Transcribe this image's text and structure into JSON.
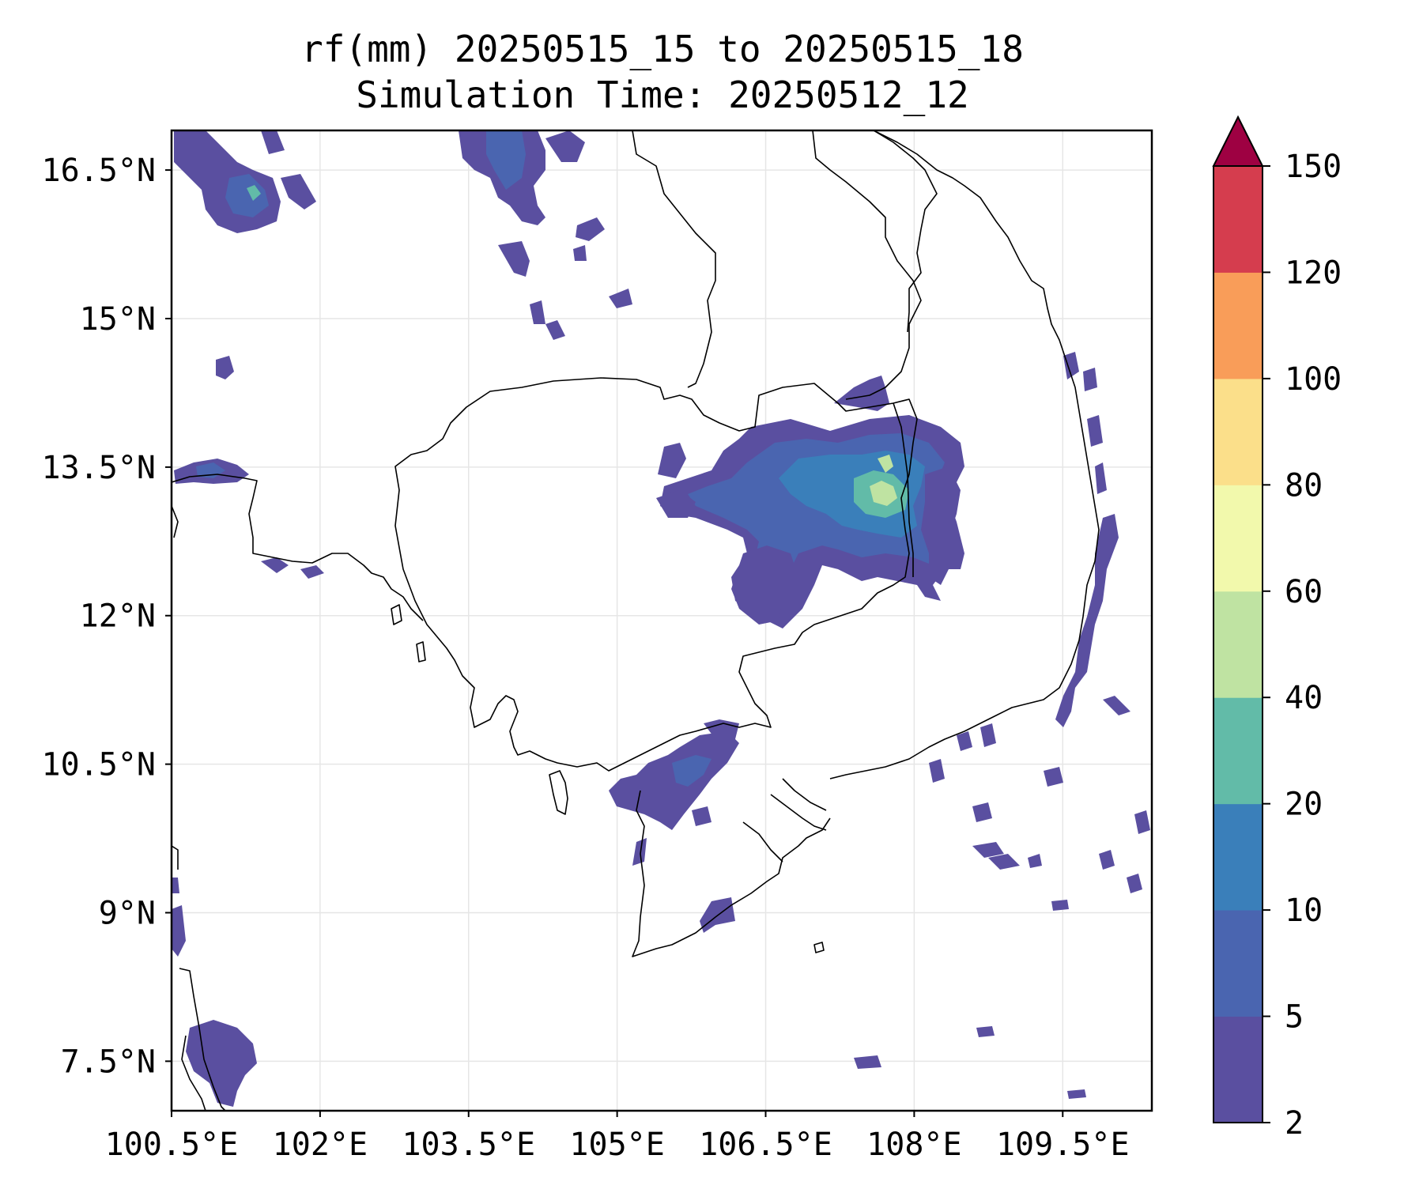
{
  "title": {
    "line1": "rf(mm) 20250515_15 to 20250515_18",
    "line2": "Simulation Time: 20250512_12"
  },
  "map": {
    "lon_ticks": [
      "100.5°E",
      "102°E",
      "103.5°E",
      "105°E",
      "106.5°E",
      "108°E",
      "109.5°E"
    ],
    "lat_ticks": [
      "16.5°N",
      "15°N",
      "13.5°N",
      "12°N",
      "10.5°N",
      "9°N",
      "7.5°N"
    ],
    "lon_range": [
      100.5,
      110.4
    ],
    "lat_range": [
      7.0,
      16.9
    ],
    "gridlines": true
  },
  "colorbar": {
    "ticks": [
      "2",
      "5",
      "10",
      "20",
      "40",
      "60",
      "80",
      "100",
      "120",
      "150"
    ],
    "colors": [
      "#5a4fa0",
      "#4a65b0",
      "#3a7fba",
      "#62bba8",
      "#bfe3a2",
      "#f2f9ac",
      "#fbdf8a",
      "#f99d59",
      "#d53d4e",
      "#9e0142"
    ],
    "extend": "max"
  }
}
